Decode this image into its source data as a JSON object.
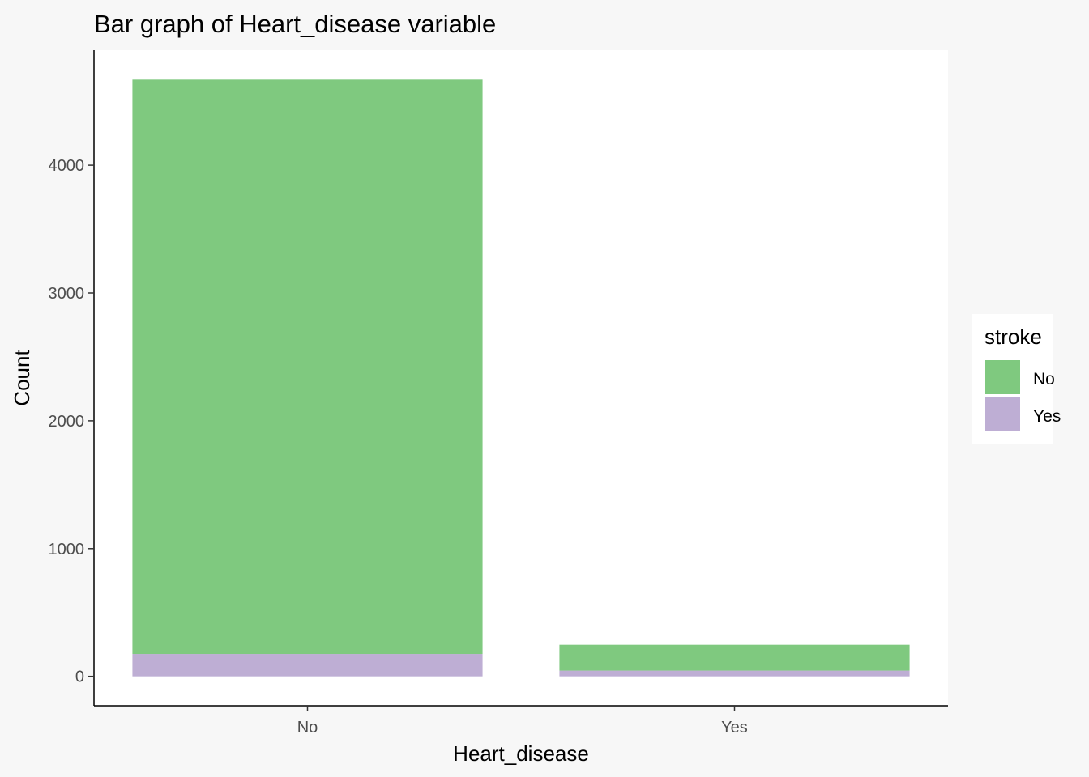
{
  "chart_data": {
    "type": "bar",
    "stacked": true,
    "title": "Bar graph of Heart_disease variable",
    "xlabel": "Heart_disease",
    "ylabel": "Count",
    "categories": [
      "No",
      "Yes"
    ],
    "series": [
      {
        "name": "No",
        "color": "#7fc97f",
        "values": [
          4495,
          202
        ]
      },
      {
        "name": "Yes",
        "color": "#beaed4",
        "values": [
          175,
          45
        ]
      }
    ],
    "y_ticks": [
      "0",
      "1000",
      "2000",
      "3000",
      "4000"
    ],
    "ylim": [
      -230,
      4900
    ],
    "grid": false,
    "legend": {
      "title": "stroke",
      "placement": "right"
    }
  }
}
